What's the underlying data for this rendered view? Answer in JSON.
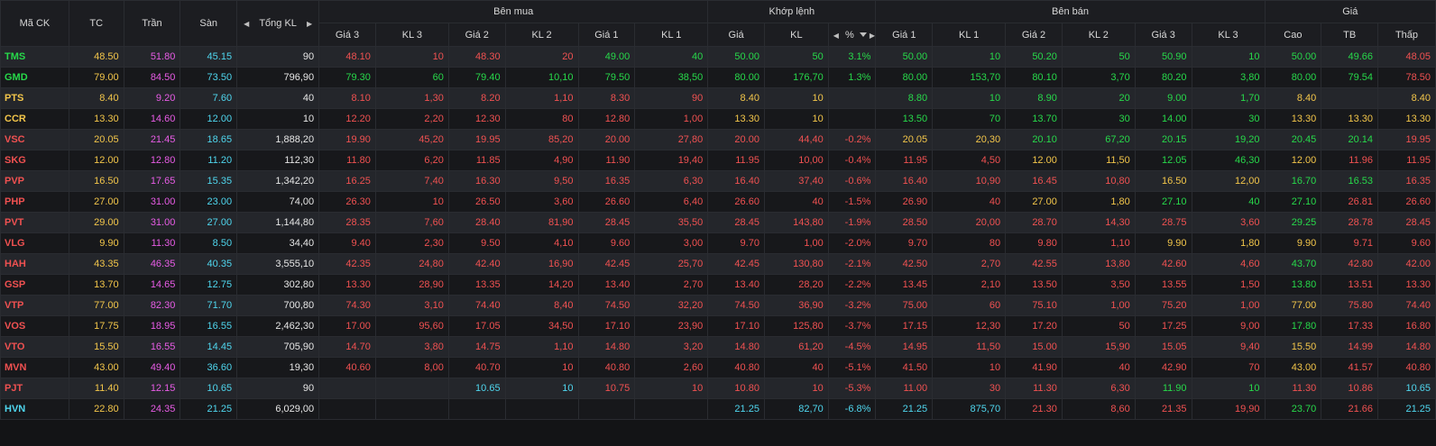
{
  "headers": {
    "symbol": "Mã CK",
    "ref": "TC",
    "ceil": "Trần",
    "floor": "Sàn",
    "total": "Tổng KL",
    "buy": "Bên mua",
    "match": "Khớp lệnh",
    "sell": "Bên bán",
    "price": "Giá",
    "buy_cols": [
      "Giá 3",
      "KL 3",
      "Giá 2",
      "KL 2",
      "Giá 1",
      "KL 1"
    ],
    "match_cols": [
      "Giá",
      "KL",
      "%"
    ],
    "sell_cols": [
      "Giá 1",
      "KL 1",
      "Giá 2",
      "KL 2",
      "Giá 3",
      "KL 3"
    ],
    "price_cols": [
      "Cao",
      "TB",
      "Thấp"
    ]
  },
  "colors": {
    "ref": "#f3c64a",
    "ceil": "#e85ce6",
    "floor": "#4fd6ee",
    "up": "#27d94a",
    "down": "#f05151"
  },
  "rows": [
    {
      "s": "TMS",
      "sc": "up",
      "tc": "48.50",
      "tr": "51.80",
      "sn": "45.15",
      "kl": "90",
      "b3": "48.10",
      "b3c": "down",
      "v3": "10",
      "b2": "48.30",
      "b2c": "down",
      "v2": "20",
      "b1": "49.00",
      "b1c": "up",
      "v1": "40",
      "mp": "50.00",
      "mpc": "up",
      "mv": "50",
      "pct": "3.1%",
      "s1": "50.00",
      "s1c": "up",
      "w1": "10",
      "s2": "50.20",
      "s2c": "up",
      "w2": "50",
      "s3": "50.90",
      "s3c": "up",
      "w3": "10",
      "hi": "50.00",
      "hic": "up",
      "avg": "49.66",
      "avgc": "up",
      "lo": "48.05",
      "loc": "down"
    },
    {
      "s": "GMD",
      "sc": "up",
      "tc": "79.00",
      "tr": "84.50",
      "sn": "73.50",
      "kl": "796,90",
      "b3": "79.30",
      "b3c": "up",
      "v3": "60",
      "b2": "79.40",
      "b2c": "up",
      "v2": "10,10",
      "b1": "79.50",
      "b1c": "up",
      "v1": "38,50",
      "mp": "80.00",
      "mpc": "up",
      "mv": "176,70",
      "pct": "1.3%",
      "s1": "80.00",
      "s1c": "up",
      "w1": "153,70",
      "s2": "80.10",
      "s2c": "up",
      "w2": "3,70",
      "s3": "80.20",
      "s3c": "up",
      "w3": "3,80",
      "hi": "80.00",
      "hic": "up",
      "avg": "79.54",
      "avgc": "up",
      "lo": "78.50",
      "loc": "down"
    },
    {
      "s": "PTS",
      "sc": "ref",
      "tc": "8.40",
      "tr": "9.20",
      "sn": "7.60",
      "kl": "40",
      "b3": "8.10",
      "b3c": "down",
      "v3": "1,30",
      "b2": "8.20",
      "b2c": "down",
      "v2": "1,10",
      "b1": "8.30",
      "b1c": "down",
      "v1": "90",
      "mp": "8.40",
      "mpc": "ref",
      "mv": "10",
      "pct": "",
      "s1": "8.80",
      "s1c": "up",
      "w1": "10",
      "s2": "8.90",
      "s2c": "up",
      "w2": "20",
      "s3": "9.00",
      "s3c": "up",
      "w3": "1,70",
      "hi": "8.40",
      "hic": "ref",
      "avg": "",
      "avgc": "ref",
      "lo": "8.40",
      "loc": "ref"
    },
    {
      "s": "CCR",
      "sc": "ref",
      "tc": "13.30",
      "tr": "14.60",
      "sn": "12.00",
      "kl": "10",
      "b3": "12.20",
      "b3c": "down",
      "v3": "2,20",
      "b2": "12.30",
      "b2c": "down",
      "v2": "80",
      "b1": "12.80",
      "b1c": "down",
      "v1": "1,00",
      "mp": "13.30",
      "mpc": "ref",
      "mv": "10",
      "pct": "",
      "s1": "13.50",
      "s1c": "up",
      "w1": "70",
      "s2": "13.70",
      "s2c": "up",
      "w2": "30",
      "s3": "14.00",
      "s3c": "up",
      "w3": "30",
      "hi": "13.30",
      "hic": "ref",
      "avg": "13.30",
      "avgc": "ref",
      "lo": "13.30",
      "loc": "ref"
    },
    {
      "s": "VSC",
      "sc": "down",
      "tc": "20.05",
      "tr": "21.45",
      "sn": "18.65",
      "kl": "1,888,20",
      "b3": "19.90",
      "b3c": "down",
      "v3": "45,20",
      "b2": "19.95",
      "b2c": "down",
      "v2": "85,20",
      "b1": "20.00",
      "b1c": "down",
      "v1": "27,80",
      "mp": "20.00",
      "mpc": "down",
      "mv": "44,40",
      "pct": "-0.2%",
      "s1": "20.05",
      "s1c": "ref",
      "w1": "20,30",
      "s2": "20.10",
      "s2c": "up",
      "w2": "67,20",
      "s3": "20.15",
      "s3c": "up",
      "w3": "19,20",
      "hi": "20.45",
      "hic": "up",
      "avg": "20.14",
      "avgc": "up",
      "lo": "19.95",
      "loc": "down"
    },
    {
      "s": "SKG",
      "sc": "down",
      "tc": "12.00",
      "tr": "12.80",
      "sn": "11.20",
      "kl": "112,30",
      "b3": "11.80",
      "b3c": "down",
      "v3": "6,20",
      "b2": "11.85",
      "b2c": "down",
      "v2": "4,90",
      "b1": "11.90",
      "b1c": "down",
      "v1": "19,40",
      "mp": "11.95",
      "mpc": "down",
      "mv": "10,00",
      "pct": "-0.4%",
      "s1": "11.95",
      "s1c": "down",
      "w1": "4,50",
      "s2": "12.00",
      "s2c": "ref",
      "w2": "11,50",
      "s3": "12.05",
      "s3c": "up",
      "w3": "46,30",
      "hi": "12.00",
      "hic": "ref",
      "avg": "11.96",
      "avgc": "down",
      "lo": "11.95",
      "loc": "down"
    },
    {
      "s": "PVP",
      "sc": "down",
      "tc": "16.50",
      "tr": "17.65",
      "sn": "15.35",
      "kl": "1,342,20",
      "b3": "16.25",
      "b3c": "down",
      "v3": "7,40",
      "b2": "16.30",
      "b2c": "down",
      "v2": "9,50",
      "b1": "16.35",
      "b1c": "down",
      "v1": "6,30",
      "mp": "16.40",
      "mpc": "down",
      "mv": "37,40",
      "pct": "-0.6%",
      "s1": "16.40",
      "s1c": "down",
      "w1": "10,90",
      "s2": "16.45",
      "s2c": "down",
      "w2": "10,80",
      "s3": "16.50",
      "s3c": "ref",
      "w3": "12,00",
      "hi": "16.70",
      "hic": "up",
      "avg": "16.53",
      "avgc": "up",
      "lo": "16.35",
      "loc": "down"
    },
    {
      "s": "PHP",
      "sc": "down",
      "tc": "27.00",
      "tr": "31.00",
      "sn": "23.00",
      "kl": "74,00",
      "b3": "26.30",
      "b3c": "down",
      "v3": "10",
      "b2": "26.50",
      "b2c": "down",
      "v2": "3,60",
      "b1": "26.60",
      "b1c": "down",
      "v1": "6,40",
      "mp": "26.60",
      "mpc": "down",
      "mv": "40",
      "pct": "-1.5%",
      "s1": "26.90",
      "s1c": "down",
      "w1": "40",
      "s2": "27.00",
      "s2c": "ref",
      "w2": "1,80",
      "s3": "27.10",
      "s3c": "up",
      "w3": "40",
      "hi": "27.10",
      "hic": "up",
      "avg": "26.81",
      "avgc": "down",
      "lo": "26.60",
      "loc": "down"
    },
    {
      "s": "PVT",
      "sc": "down",
      "tc": "29.00",
      "tr": "31.00",
      "sn": "27.00",
      "kl": "1,144,80",
      "b3": "28.35",
      "b3c": "down",
      "v3": "7,60",
      "b2": "28.40",
      "b2c": "down",
      "v2": "81,90",
      "b1": "28.45",
      "b1c": "down",
      "v1": "35,50",
      "mp": "28.45",
      "mpc": "down",
      "mv": "143,80",
      "pct": "-1.9%",
      "s1": "28.50",
      "s1c": "down",
      "w1": "20,00",
      "s2": "28.70",
      "s2c": "down",
      "w2": "14,30",
      "s3": "28.75",
      "s3c": "down",
      "w3": "3,60",
      "hi": "29.25",
      "hic": "up",
      "avg": "28.78",
      "avgc": "down",
      "lo": "28.45",
      "loc": "down"
    },
    {
      "s": "VLG",
      "sc": "down",
      "tc": "9.90",
      "tr": "11.30",
      "sn": "8.50",
      "kl": "34,40",
      "b3": "9.40",
      "b3c": "down",
      "v3": "2,30",
      "b2": "9.50",
      "b2c": "down",
      "v2": "4,10",
      "b1": "9.60",
      "b1c": "down",
      "v1": "3,00",
      "mp": "9.70",
      "mpc": "down",
      "mv": "1,00",
      "pct": "-2.0%",
      "s1": "9.70",
      "s1c": "down",
      "w1": "80",
      "s2": "9.80",
      "s2c": "down",
      "w2": "1,10",
      "s3": "9.90",
      "s3c": "ref",
      "w3": "1,80",
      "hi": "9.90",
      "hic": "ref",
      "avg": "9.71",
      "avgc": "down",
      "lo": "9.60",
      "loc": "down"
    },
    {
      "s": "HAH",
      "sc": "down",
      "tc": "43.35",
      "tr": "46.35",
      "sn": "40.35",
      "kl": "3,555,10",
      "b3": "42.35",
      "b3c": "down",
      "v3": "24,80",
      "b2": "42.40",
      "b2c": "down",
      "v2": "16,90",
      "b1": "42.45",
      "b1c": "down",
      "v1": "25,70",
      "mp": "42.45",
      "mpc": "down",
      "mv": "130,80",
      "pct": "-2.1%",
      "s1": "42.50",
      "s1c": "down",
      "w1": "2,70",
      "s2": "42.55",
      "s2c": "down",
      "w2": "13,80",
      "s3": "42.60",
      "s3c": "down",
      "w3": "4,60",
      "hi": "43.70",
      "hic": "up",
      "avg": "42.80",
      "avgc": "down",
      "lo": "42.00",
      "loc": "down"
    },
    {
      "s": "GSP",
      "sc": "down",
      "tc": "13.70",
      "tr": "14.65",
      "sn": "12.75",
      "kl": "302,80",
      "b3": "13.30",
      "b3c": "down",
      "v3": "28,90",
      "b2": "13.35",
      "b2c": "down",
      "v2": "14,20",
      "b1": "13.40",
      "b1c": "down",
      "v1": "2,70",
      "mp": "13.40",
      "mpc": "down",
      "mv": "28,20",
      "pct": "-2.2%",
      "s1": "13.45",
      "s1c": "down",
      "w1": "2,10",
      "s2": "13.50",
      "s2c": "down",
      "w2": "3,50",
      "s3": "13.55",
      "s3c": "down",
      "w3": "1,50",
      "hi": "13.80",
      "hic": "up",
      "avg": "13.51",
      "avgc": "down",
      "lo": "13.30",
      "loc": "down"
    },
    {
      "s": "VTP",
      "sc": "down",
      "tc": "77.00",
      "tr": "82.30",
      "sn": "71.70",
      "kl": "700,80",
      "b3": "74.30",
      "b3c": "down",
      "v3": "3,10",
      "b2": "74.40",
      "b2c": "down",
      "v2": "8,40",
      "b1": "74.50",
      "b1c": "down",
      "v1": "32,20",
      "mp": "74.50",
      "mpc": "down",
      "mv": "36,90",
      "pct": "-3.2%",
      "s1": "75.00",
      "s1c": "down",
      "w1": "60",
      "s2": "75.10",
      "s2c": "down",
      "w2": "1,00",
      "s3": "75.20",
      "s3c": "down",
      "w3": "1,00",
      "hi": "77.00",
      "hic": "ref",
      "avg": "75.80",
      "avgc": "down",
      "lo": "74.40",
      "loc": "down"
    },
    {
      "s": "VOS",
      "sc": "down",
      "tc": "17.75",
      "tr": "18.95",
      "sn": "16.55",
      "kl": "2,462,30",
      "b3": "17.00",
      "b3c": "down",
      "v3": "95,60",
      "b2": "17.05",
      "b2c": "down",
      "v2": "34,50",
      "b1": "17.10",
      "b1c": "down",
      "v1": "23,90",
      "mp": "17.10",
      "mpc": "down",
      "mv": "125,80",
      "pct": "-3.7%",
      "s1": "17.15",
      "s1c": "down",
      "w1": "12,30",
      "s2": "17.20",
      "s2c": "down",
      "w2": "50",
      "s3": "17.25",
      "s3c": "down",
      "w3": "9,00",
      "hi": "17.80",
      "hic": "up",
      "avg": "17.33",
      "avgc": "down",
      "lo": "16.80",
      "loc": "down"
    },
    {
      "s": "VTO",
      "sc": "down",
      "tc": "15.50",
      "tr": "16.55",
      "sn": "14.45",
      "kl": "705,90",
      "b3": "14.70",
      "b3c": "down",
      "v3": "3,80",
      "b2": "14.75",
      "b2c": "down",
      "v2": "1,10",
      "b1": "14.80",
      "b1c": "down",
      "v1": "3,20",
      "mp": "14.80",
      "mpc": "down",
      "mv": "61,20",
      "pct": "-4.5%",
      "s1": "14.95",
      "s1c": "down",
      "w1": "11,50",
      "s2": "15.00",
      "s2c": "down",
      "w2": "15,90",
      "s3": "15.05",
      "s3c": "down",
      "w3": "9,40",
      "hi": "15.50",
      "hic": "ref",
      "avg": "14.99",
      "avgc": "down",
      "lo": "14.80",
      "loc": "down"
    },
    {
      "s": "MVN",
      "sc": "down",
      "tc": "43.00",
      "tr": "49.40",
      "sn": "36.60",
      "kl": "19,30",
      "b3": "40.60",
      "b3c": "down",
      "v3": "8,00",
      "b2": "40.70",
      "b2c": "down",
      "v2": "10",
      "b1": "40.80",
      "b1c": "down",
      "v1": "2,60",
      "mp": "40.80",
      "mpc": "down",
      "mv": "40",
      "pct": "-5.1%",
      "s1": "41.50",
      "s1c": "down",
      "w1": "10",
      "s2": "41.90",
      "s2c": "down",
      "w2": "40",
      "s3": "42.90",
      "s3c": "down",
      "w3": "70",
      "hi": "43.00",
      "hic": "ref",
      "avg": "41.57",
      "avgc": "down",
      "lo": "40.80",
      "loc": "down"
    },
    {
      "s": "PJT",
      "sc": "down",
      "tc": "11.40",
      "tr": "12.15",
      "sn": "10.65",
      "kl": "90",
      "b3": "",
      "b3c": "down",
      "v3": "",
      "b2": "10.65",
      "b2c": "floor",
      "v2": "10",
      "b1": "10.75",
      "b1c": "down",
      "v1": "10",
      "mp": "10.80",
      "mpc": "down",
      "mv": "10",
      "pct": "-5.3%",
      "s1": "11.00",
      "s1c": "down",
      "w1": "30",
      "s2": "11.30",
      "s2c": "down",
      "w2": "6,30",
      "s3": "11.90",
      "s3c": "up",
      "w3": "10",
      "hi": "11.30",
      "hic": "down",
      "avg": "10.86",
      "avgc": "down",
      "lo": "10.65",
      "loc": "floor"
    },
    {
      "s": "HVN",
      "sc": "floor",
      "tc": "22.80",
      "tr": "24.35",
      "sn": "21.25",
      "kl": "6,029,00",
      "b3": "",
      "b3c": "down",
      "v3": "",
      "b2": "",
      "b2c": "down",
      "v2": "",
      "b1": "",
      "b1c": "down",
      "v1": "",
      "mp": "21.25",
      "mpc": "floor",
      "mv": "82,70",
      "pct": "-6.8%",
      "s1": "21.25",
      "s1c": "floor",
      "w1": "875,70",
      "s2": "21.30",
      "s2c": "down",
      "w2": "8,60",
      "s3": "21.35",
      "s3c": "down",
      "w3": "19,90",
      "hi": "23.70",
      "hic": "up",
      "avg": "21.66",
      "avgc": "down",
      "lo": "21.25",
      "loc": "floor"
    }
  ]
}
